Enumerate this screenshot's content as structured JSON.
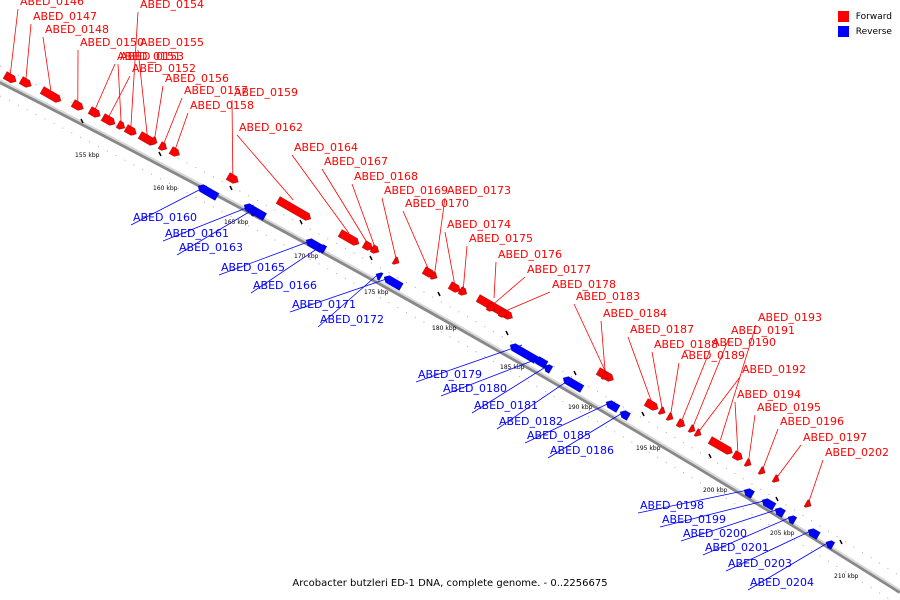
{
  "legend": {
    "forward_label": "Forward",
    "reverse_label": "Reverse",
    "forward_color": "#ff0000",
    "reverse_color": "#0000ff"
  },
  "caption": "Arcobacter butzleri ED-1 DNA, complete genome. - 0..2256675",
  "ticks": [
    "155 kbp",
    "160 kbp",
    "165 kbp",
    "170 kbp",
    "175 kbp",
    "180 kbp",
    "185 kbp",
    "190 kbp",
    "195 kbp",
    "200 kbp",
    "205 kbp",
    "210 kbp"
  ],
  "forward_genes": [
    "ABED_0146",
    "ABED_0147",
    "ABED_0148",
    "ABED_0150",
    "ABED_0151",
    "ABED_0152",
    "ABED_0153",
    "ABED_0154",
    "ABED_0155",
    "ABED_0156",
    "ABED_0157",
    "ABED_0158",
    "ABED_0159",
    "ABED_0162",
    "ABED_0164",
    "ABED_0167",
    "ABED_0168",
    "ABED_0169",
    "ABED_0170",
    "ABED_0173",
    "ABED_0174",
    "ABED_0175",
    "ABED_0176",
    "ABED_0177",
    "ABED_0178",
    "ABED_0183",
    "ABED_0184",
    "ABED_0187",
    "ABED_0188",
    "ABED_0189",
    "ABED_0190",
    "ABED_0191",
    "ABED_0192",
    "ABED_0193",
    "ABED_0194",
    "ABED_0195",
    "ABED_0196",
    "ABED_0197",
    "ABED_0202"
  ],
  "reverse_genes": [
    "ABED_0160",
    "ABED_0161",
    "ABED_0163",
    "ABED_0165",
    "ABED_0166",
    "ABED_0171",
    "ABED_0172",
    "ABED_0179",
    "ABED_0180",
    "ABED_0181",
    "ABED_0182",
    "ABED_0185",
    "ABED_0186",
    "ABED_0198",
    "ABED_0199",
    "ABED_0200",
    "ABED_0201",
    "ABED_0203",
    "ABED_0204"
  ]
}
